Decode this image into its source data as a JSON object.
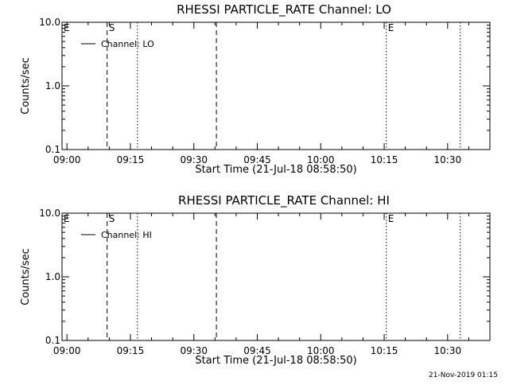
{
  "footer": {
    "timestamp": "21-Nov-2019 01:15"
  },
  "chart_data": [
    {
      "type": "line",
      "title": "RHESSI PARTICLE_RATE Channel: LO",
      "xlabel": "Start Time (21-Jul-18 08:58:50)",
      "ylabel": "Counts/sec",
      "xlim": [
        "08:58:50",
        "10:40:00"
      ],
      "ylim": [
        0.1,
        10.0
      ],
      "yscale": "log",
      "xticks": [
        "09:00",
        "09:15",
        "09:30",
        "09:45",
        "10:00",
        "10:15",
        "10:30"
      ],
      "yticks": [
        "0.1",
        "1.0",
        "10.0"
      ],
      "legend": {
        "placement": "top-left",
        "entries": [
          "Channel: LO"
        ]
      },
      "series": [
        {
          "name": "Channel: LO",
          "values": []
        }
      ],
      "markers": [
        {
          "label": "E",
          "time": "08:58:50",
          "style": "solid"
        },
        {
          "label": "S",
          "time": "09:09:30",
          "style": "dashed"
        },
        {
          "label": "",
          "time": "09:16:40",
          "style": "dotted"
        },
        {
          "label": "",
          "time": "09:35:20",
          "style": "dashed"
        },
        {
          "label": "E",
          "time": "10:15:30",
          "style": "dotted"
        },
        {
          "label": "",
          "time": "10:33:00",
          "style": "dotted"
        }
      ]
    },
    {
      "type": "line",
      "title": "RHESSI PARTICLE_RATE Channel: HI",
      "xlabel": "Start Time (21-Jul-18 08:58:50)",
      "ylabel": "Counts/sec",
      "xlim": [
        "08:58:50",
        "10:40:00"
      ],
      "ylim": [
        0.1,
        10.0
      ],
      "yscale": "log",
      "xticks": [
        "09:00",
        "09:15",
        "09:30",
        "09:45",
        "10:00",
        "10:15",
        "10:30"
      ],
      "yticks": [
        "0.1",
        "1.0",
        "10.0"
      ],
      "legend": {
        "placement": "top-left",
        "entries": [
          "Channel: HI"
        ]
      },
      "series": [
        {
          "name": "Channel: HI",
          "values": []
        }
      ],
      "markers": [
        {
          "label": "E",
          "time": "08:58:50",
          "style": "solid"
        },
        {
          "label": "S",
          "time": "09:09:30",
          "style": "dashed"
        },
        {
          "label": "",
          "time": "09:16:40",
          "style": "dotted"
        },
        {
          "label": "",
          "time": "09:35:20",
          "style": "dashed"
        },
        {
          "label": "E",
          "time": "10:15:30",
          "style": "dotted"
        },
        {
          "label": "",
          "time": "10:33:00",
          "style": "dotted"
        }
      ]
    }
  ]
}
